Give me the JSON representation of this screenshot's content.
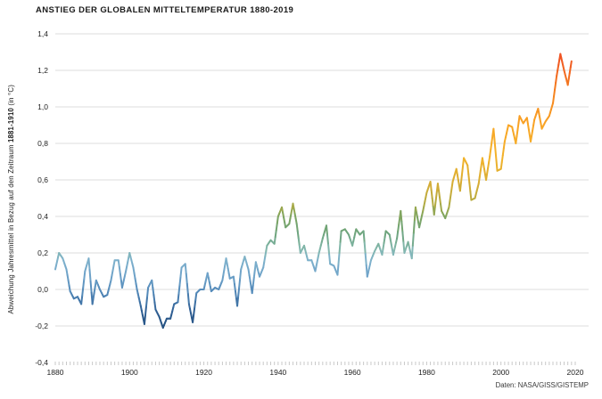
{
  "header": {
    "title": "ANSTIEG DER GLOBALEN MITTELTEMPERATUR 1880-2019"
  },
  "source_note": "Daten: NASA/GISS/GISTEMP",
  "y_axis": {
    "label_prefix": "Abweichung Jahresmittel in Bezug auf den Zeitraum ",
    "label_bold": "1881-1910",
    "label_suffix": " (in °C)",
    "tick_labels": [
      "1,4",
      "1,2",
      "1,0",
      "0,8",
      "0,6",
      "0,4",
      "0,2",
      "0,0",
      "-0,2",
      "-0,4"
    ],
    "tick_values": [
      1.4,
      1.2,
      1.0,
      0.8,
      0.6,
      0.4,
      0.2,
      0.0,
      -0.2,
      -0.4
    ]
  },
  "x_axis": {
    "tick_labels": [
      "1880",
      "1900",
      "1920",
      "1940",
      "1960",
      "1980",
      "2000",
      "2020"
    ],
    "tick_values": [
      1880,
      1900,
      1920,
      1940,
      1960,
      1980,
      2000,
      2020
    ],
    "minor_tick_step_years": 1
  },
  "chart_data": {
    "type": "line",
    "title": "ANSTIEG DER GLOBALEN MITTELTEMPERATUR 1880-2019",
    "xlabel": "",
    "ylabel": "Abweichung Jahresmittel in Bezug auf den Zeitraum 1881-1910 (in °C)",
    "xlim": [
      1880,
      2020
    ],
    "ylim": [
      -0.4,
      1.4
    ],
    "grid": "horizontal-light",
    "legend": "none",
    "color_encoding": "line colored by anomaly value (cold blue to hot red)",
    "colormap": [
      {
        "v": -0.25,
        "c": "#1e4976"
      },
      {
        "v": -0.12,
        "c": "#2f5f94"
      },
      {
        "v": -0.02,
        "c": "#5288b8"
      },
      {
        "v": 0.08,
        "c": "#6fa3c9"
      },
      {
        "v": 0.16,
        "c": "#7fb2cc"
      },
      {
        "v": 0.22,
        "c": "#84b8ae"
      },
      {
        "v": 0.3,
        "c": "#6ea580"
      },
      {
        "v": 0.4,
        "c": "#7da45f"
      },
      {
        "v": 0.47,
        "c": "#b1ab43"
      },
      {
        "v": 0.58,
        "c": "#d6ac34"
      },
      {
        "v": 0.72,
        "c": "#f2b32b"
      },
      {
        "v": 0.9,
        "c": "#f9a525"
      },
      {
        "v": 1.08,
        "c": "#f5821f"
      },
      {
        "v": 1.3,
        "c": "#ef4e23"
      }
    ],
    "years": [
      1880,
      1881,
      1882,
      1883,
      1884,
      1885,
      1886,
      1887,
      1888,
      1889,
      1890,
      1891,
      1892,
      1893,
      1894,
      1895,
      1896,
      1897,
      1898,
      1899,
      1900,
      1901,
      1902,
      1903,
      1904,
      1905,
      1906,
      1907,
      1908,
      1909,
      1910,
      1911,
      1912,
      1913,
      1914,
      1915,
      1916,
      1917,
      1918,
      1919,
      1920,
      1921,
      1922,
      1923,
      1924,
      1925,
      1926,
      1927,
      1928,
      1929,
      1930,
      1931,
      1932,
      1933,
      1934,
      1935,
      1936,
      1937,
      1938,
      1939,
      1940,
      1941,
      1942,
      1943,
      1944,
      1945,
      1946,
      1947,
      1948,
      1949,
      1950,
      1951,
      1952,
      1953,
      1954,
      1955,
      1956,
      1957,
      1958,
      1959,
      1960,
      1961,
      1962,
      1963,
      1964,
      1965,
      1966,
      1967,
      1968,
      1969,
      1970,
      1971,
      1972,
      1973,
      1974,
      1975,
      1976,
      1977,
      1978,
      1979,
      1980,
      1981,
      1982,
      1983,
      1984,
      1985,
      1986,
      1987,
      1988,
      1989,
      1990,
      1991,
      1992,
      1993,
      1994,
      1995,
      1996,
      1997,
      1998,
      1999,
      2000,
      2001,
      2002,
      2003,
      2004,
      2005,
      2006,
      2007,
      2008,
      2009,
      2010,
      2011,
      2012,
      2013,
      2014,
      2015,
      2016,
      2017,
      2018,
      2019
    ],
    "values": [
      0.11,
      0.2,
      0.17,
      0.11,
      -0.01,
      -0.05,
      -0.04,
      -0.08,
      0.1,
      0.17,
      -0.08,
      0.05,
      0.0,
      -0.04,
      -0.03,
      0.05,
      0.16,
      0.16,
      0.01,
      0.1,
      0.2,
      0.12,
      0.0,
      -0.09,
      -0.19,
      0.01,
      0.05,
      -0.11,
      -0.15,
      -0.21,
      -0.16,
      -0.16,
      -0.08,
      -0.07,
      0.12,
      0.14,
      -0.08,
      -0.18,
      -0.02,
      0.0,
      0.0,
      0.09,
      -0.01,
      0.01,
      0.0,
      0.05,
      0.17,
      0.06,
      0.07,
      -0.09,
      0.11,
      0.18,
      0.11,
      -0.02,
      0.15,
      0.07,
      0.12,
      0.24,
      0.27,
      0.25,
      0.4,
      0.45,
      0.34,
      0.36,
      0.47,
      0.36,
      0.2,
      0.24,
      0.16,
      0.16,
      0.1,
      0.2,
      0.28,
      0.35,
      0.14,
      0.13,
      0.08,
      0.32,
      0.33,
      0.3,
      0.24,
      0.33,
      0.3,
      0.32,
      0.07,
      0.16,
      0.21,
      0.25,
      0.19,
      0.32,
      0.3,
      0.19,
      0.28,
      0.43,
      0.2,
      0.26,
      0.17,
      0.45,
      0.34,
      0.43,
      0.53,
      0.59,
      0.41,
      0.58,
      0.43,
      0.39,
      0.45,
      0.59,
      0.66,
      0.54,
      0.72,
      0.68,
      0.49,
      0.5,
      0.58,
      0.72,
      0.6,
      0.73,
      0.88,
      0.65,
      0.66,
      0.81,
      0.9,
      0.89,
      0.8,
      0.95,
      0.91,
      0.94,
      0.81,
      0.93,
      0.99,
      0.88,
      0.92,
      0.95,
      1.02,
      1.17,
      1.29,
      1.2,
      1.12,
      1.25
    ]
  }
}
